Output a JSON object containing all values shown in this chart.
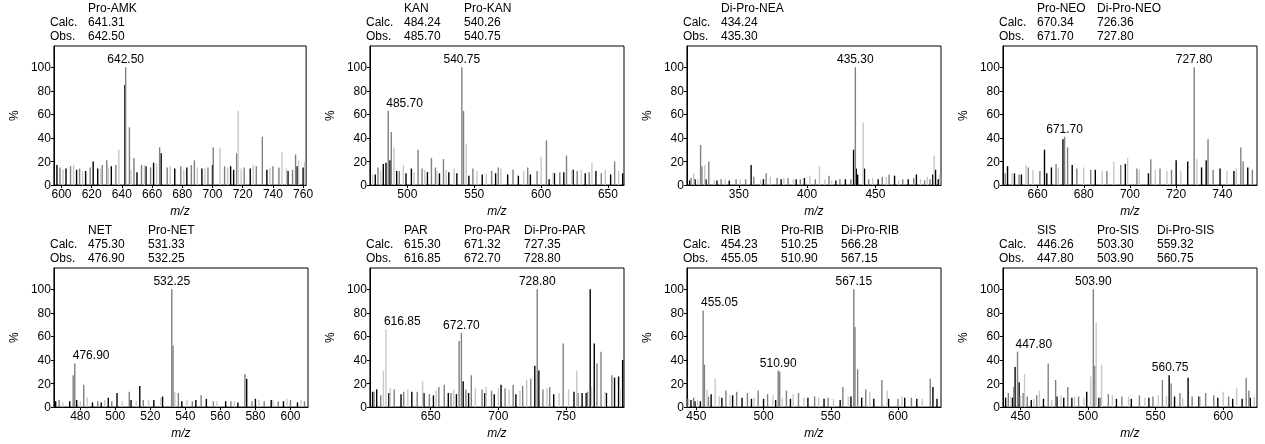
{
  "chart_data": [
    {
      "type": "bar",
      "xlabel": "m/z",
      "ylabel": "%",
      "xlim": [
        595,
        762
      ],
      "xticks": [
        600,
        620,
        640,
        660,
        680,
        700,
        720,
        740,
        760
      ],
      "ylim": [
        0,
        118
      ],
      "yticks": [
        0,
        20,
        40,
        60,
        80,
        100
      ],
      "annotations": [
        {
          "text": "642.50",
          "x": 642.5,
          "y": 100
        },
        "Pro-AMK",
        "Calc.",
        "641.31",
        "Obs.",
        "642.50"
      ],
      "series": [
        {
          "color": "#000000",
          "x": [
            597,
            603,
            610,
            616,
            621,
            624,
            633,
            642,
            650,
            656,
            661,
            666,
            675,
            683,
            693,
            700,
            712,
            714,
            725,
            736,
            750,
            756,
            760
          ],
          "values": [
            17,
            14,
            13,
            12,
            20,
            14,
            16,
            85,
            11,
            16,
            19,
            27,
            14,
            15,
            14,
            17,
            16,
            13,
            14,
            13,
            12,
            16,
            15
          ]
        },
        {
          "color": "#808080",
          "x": [
            599,
            606,
            612,
            619,
            627,
            630,
            636,
            642.5,
            645,
            648,
            653,
            659,
            665,
            670,
            679,
            686,
            688,
            697,
            700.5,
            708,
            716,
            721,
            729,
            733,
            740,
            744,
            753,
            755
          ],
          "values": [
            15,
            16,
            14,
            15,
            17,
            21,
            17,
            100,
            49,
            23,
            17,
            15,
            32,
            15,
            16,
            17,
            21,
            15,
            32,
            16,
            27,
            15,
            16,
            41,
            16,
            15,
            13,
            26
          ]
        },
        {
          "color": "#c8c8c8",
          "x": [
            601,
            608,
            614,
            626,
            631,
            638,
            646,
            655,
            663,
            672,
            681,
            690,
            695,
            705,
            710,
            717,
            719,
            727,
            738,
            746,
            749,
            757,
            761
          ],
          "values": [
            13,
            17,
            12,
            14,
            15,
            30,
            13,
            17,
            18,
            16,
            13,
            15,
            14,
            32,
            15,
            63,
            14,
            17,
            15,
            28,
            14,
            21,
            20
          ]
        }
      ]
    },
    {
      "type": "bar",
      "xlabel": "m/z",
      "ylabel": "%",
      "xlim": [
        472,
        662
      ],
      "xticks": [
        500,
        550,
        600,
        650
      ],
      "ylim": [
        0,
        118
      ],
      "yticks": [
        0,
        20,
        40,
        60,
        80,
        100
      ],
      "annotations": [
        {
          "text": "540.75",
          "x": 540.75,
          "y": 100
        },
        {
          "text": "485.70",
          "x": 485.7,
          "y": 63
        },
        "KAN",
        "Pro-KAN",
        "Calc.",
        "484.24",
        "540.26",
        "Obs.",
        "485.70",
        "540.75"
      ],
      "series": [
        {
          "color": "#000000",
          "x": [
            476,
            482,
            484,
            487,
            492,
            499,
            503,
            515,
            524,
            531,
            537,
            546,
            556,
            566,
            575,
            583,
            592,
            606,
            610,
            617,
            624,
            633,
            641,
            652,
            661
          ],
          "values": [
            9,
            18,
            19,
            21,
            12,
            10,
            14,
            11,
            10,
            11,
            10,
            8,
            9,
            10,
            9,
            8,
            9,
            5,
            10,
            11,
            13,
            10,
            12,
            9,
            10
          ]
        },
        {
          "color": "#808080",
          "x": [
            478,
            485.7,
            488,
            494,
            508,
            511,
            518,
            521,
            527,
            540.75,
            542,
            549,
            563,
            568,
            579,
            590,
            597,
            604,
            614,
            619,
            627,
            636,
            645,
            655
          ],
          "values": [
            15,
            63,
            45,
            12,
            30,
            14,
            23,
            15,
            22,
            100,
            63,
            14,
            12,
            15,
            13,
            15,
            12,
            38,
            11,
            25,
            12,
            11,
            10,
            20
          ]
        },
        {
          "color": "#c8c8c8",
          "x": [
            474,
            480,
            490,
            497,
            505,
            513,
            522,
            529,
            535,
            544,
            552,
            559,
            570,
            587,
            600,
            609,
            623,
            630,
            638,
            648,
            658
          ],
          "values": [
            9,
            12,
            32,
            17,
            11,
            13,
            12,
            13,
            14,
            35,
            12,
            10,
            14,
            12,
            24,
            11,
            12,
            13,
            19,
            13,
            12
          ]
        }
      ]
    },
    {
      "type": "bar",
      "xlabel": "m/z",
      "ylabel": "%",
      "xlim": [
        312,
        498
      ],
      "xticks": [
        350,
        400,
        450
      ],
      "ylim": [
        0,
        118
      ],
      "yticks": [
        0,
        20,
        40,
        60,
        80,
        100
      ],
      "annotations": [
        {
          "text": "435.30",
          "x": 435.3,
          "y": 100
        },
        "Di-Pro-NEA",
        "Calc.",
        "434.24",
        "Obs.",
        "435.30"
      ],
      "series": [
        {
          "color": "#000000",
          "x": [
            314,
            318,
            326,
            334,
            343,
            359,
            368,
            381,
            392,
            398,
            421,
            428,
            434,
            436,
            437,
            442,
            452,
            464,
            474,
            480,
            492,
            494,
            496
          ],
          "values": [
            4,
            5,
            5,
            4,
            4,
            17,
            5,
            5,
            5,
            6,
            4,
            5,
            30,
            14,
            9,
            14,
            5,
            8,
            5,
            9,
            9,
            13,
            5
          ]
        },
        {
          "color": "#808080",
          "x": [
            315,
            322,
            323,
            328,
            337,
            348,
            355,
            361,
            370,
            378,
            386,
            395,
            406,
            416,
            424,
            432,
            435.3,
            445,
            455,
            460,
            470,
            478,
            486,
            490
          ],
          "values": [
            6,
            34,
            16,
            20,
            5,
            5,
            5,
            7,
            10,
            6,
            6,
            5,
            5,
            8,
            5,
            5,
            100,
            5,
            7,
            9,
            5,
            6,
            4,
            5
          ]
        },
        {
          "color": "#c8c8c8",
          "x": [
            317,
            320,
            325,
            332,
            340,
            351,
            366,
            373,
            383,
            390,
            402,
            409,
            413,
            418,
            441,
            448,
            458,
            467,
            483,
            488,
            493,
            497
          ],
          "values": [
            10,
            5,
            17,
            4,
            5,
            5,
            4,
            7,
            6,
            5,
            8,
            16,
            5,
            4,
            53,
            6,
            7,
            4,
            5,
            7,
            25,
            9
          ]
        }
      ]
    },
    {
      "type": "bar",
      "xlabel": "m/z",
      "ylabel": "%",
      "xlim": [
        645,
        755
      ],
      "xticks": [
        660,
        680,
        700,
        720,
        740
      ],
      "ylim": [
        0,
        118
      ],
      "yticks": [
        0,
        20,
        40,
        60,
        80,
        100
      ],
      "annotations": [
        {
          "text": "727.80",
          "x": 727.8,
          "y": 100
        },
        {
          "text": "671.70",
          "x": 671.7,
          "y": 41
        },
        "Pro-NEO",
        "Di-Pro-NEO",
        "Calc.",
        "670.34",
        "726.36",
        "Obs.",
        "671.70",
        "727.80"
      ],
      "series": [
        {
          "color": "#000000",
          "x": [
            647,
            650,
            653,
            663,
            664,
            666,
            671,
            675,
            685,
            698,
            708,
            720,
            725,
            731,
            733,
            739,
            745,
            751
          ],
          "values": [
            16,
            10,
            9,
            30,
            10,
            15,
            39,
            17,
            13,
            18,
            10,
            21,
            20,
            15,
            21,
            14,
            12,
            15
          ]
        },
        {
          "color": "#808080",
          "x": [
            646,
            652,
            656,
            661,
            668,
            671.7,
            673,
            677,
            683,
            690,
            696,
            703,
            709,
            713,
            718,
            727.8,
            733.8,
            736,
            748,
            749,
            753
          ],
          "values": [
            10,
            9,
            15,
            12,
            18,
            41,
            32,
            14,
            13,
            12,
            17,
            14,
            22,
            14,
            13,
            100,
            39,
            13,
            32,
            20,
            13
          ]
        },
        {
          "color": "#c8c8c8",
          "x": [
            649,
            655,
            658,
            669,
            680,
            688,
            693,
            699,
            704,
            711,
            716,
            722,
            729,
            742,
            746
          ],
          "values": [
            10,
            17,
            13,
            15,
            15,
            12,
            20,
            23,
            13,
            13,
            12,
            12,
            22,
            12,
            14
          ]
        }
      ]
    },
    {
      "type": "bar",
      "xlabel": "m/z",
      "ylabel": "%",
      "xlim": [
        465,
        610
      ],
      "xticks": [
        480,
        500,
        520,
        540,
        560,
        580,
        600
      ],
      "ylim": [
        0,
        118
      ],
      "yticks": [
        0,
        20,
        40,
        60,
        80,
        100
      ],
      "annotations": [
        {
          "text": "532.25",
          "x": 532.25,
          "y": 100
        },
        {
          "text": "476.90",
          "x": 476.9,
          "y": 37
        },
        "NET",
        "Pro-NET",
        "Calc.",
        "475.30",
        "531.33",
        "Obs.",
        "476.90",
        "532.25"
      ],
      "series": [
        {
          "color": "#000000",
          "x": [
            466,
            474,
            478,
            487,
            492,
            496,
            501,
            509,
            514,
            522,
            527,
            538,
            546,
            552,
            563,
            570,
            575,
            580,
            589,
            596,
            604
          ],
          "values": [
            5,
            5,
            6,
            4,
            4,
            8,
            12,
            6,
            18,
            6,
            9,
            5,
            6,
            7,
            5,
            4,
            24,
            7,
            6,
            5,
            4
          ]
        },
        {
          "color": "#808080",
          "x": [
            468,
            476,
            476.9,
            482,
            490,
            498,
            508,
            516,
            532.25,
            533,
            536,
            544,
            549,
            556,
            566,
            574,
            578,
            585,
            593,
            600,
            608
          ],
          "values": [
            6,
            27,
            37,
            19,
            5,
            5,
            13,
            6,
            100,
            52,
            12,
            5,
            10,
            5,
            5,
            28,
            5,
            5,
            5,
            6,
            5
          ]
        },
        {
          "color": "#c8c8c8",
          "x": [
            470,
            480,
            484,
            494,
            504,
            512,
            519,
            526,
            534,
            541,
            558,
            568,
            582,
            590,
            598,
            606
          ],
          "values": [
            4,
            5,
            8,
            6,
            5,
            5,
            6,
            8,
            13,
            6,
            5,
            5,
            6,
            6,
            7,
            6
          ]
        }
      ]
    },
    {
      "type": "bar",
      "xlabel": "m/z",
      "ylabel": "%",
      "xlim": [
        605,
        793
      ],
      "xticks": [
        650,
        700,
        750
      ],
      "ylim": [
        0,
        118
      ],
      "yticks": [
        0,
        20,
        40,
        60,
        80,
        100
      ],
      "annotations": [
        {
          "text": "728.80",
          "x": 728.8,
          "y": 100
        },
        {
          "text": "616.85",
          "x": 616.85,
          "y": 66
        },
        {
          "text": "672.70",
          "x": 672.7,
          "y": 63
        },
        "PAR",
        "Pro-PAR",
        "Di-Pro-PAR",
        "Calc.",
        "615.30",
        "671.32",
        "727.35",
        "Obs.",
        "616.85",
        "672.70",
        "728.80"
      ],
      "series": [
        {
          "color": "#000000",
          "x": [
            607,
            610,
            619,
            628,
            636,
            645,
            652,
            663,
            669,
            674,
            678,
            690,
            697,
            702,
            713,
            727,
            730,
            741,
            756,
            762,
            765,
            768,
            771,
            780,
            786,
            789,
            792
          ],
          "values": [
            13,
            15,
            12,
            11,
            13,
            12,
            10,
            12,
            11,
            22,
            12,
            12,
            11,
            19,
            11,
            35,
            31,
            11,
            13,
            12,
            12,
            100,
            54,
            12,
            25,
            26,
            40
          ]
        },
        {
          "color": "#808080",
          "x": [
            608,
            613,
            623,
            630,
            640,
            649,
            656,
            660,
            665,
            671,
            672.7,
            676,
            680,
            688,
            695,
            705,
            711,
            718,
            724,
            728.8,
            733,
            738,
            748,
            759,
            766,
            773,
            776,
            784
          ],
          "values": [
            13,
            10,
            15,
            13,
            13,
            11,
            17,
            19,
            12,
            56,
            63,
            15,
            27,
            15,
            14,
            16,
            19,
            18,
            24,
            100,
            15,
            17,
            54,
            12,
            13,
            37,
            47,
            27
          ]
        },
        {
          "color": "#c8c8c8",
          "x": [
            615,
            616.85,
            620,
            633,
            644,
            654,
            667,
            683,
            691,
            700,
            708,
            716,
            721,
            736,
            745,
            752,
            758,
            769,
            779,
            790
          ],
          "values": [
            31,
            66,
            16,
            15,
            22,
            14,
            15,
            16,
            17,
            16,
            15,
            14,
            23,
            16,
            12,
            15,
            31,
            17,
            13,
            16
          ]
        }
      ]
    },
    {
      "type": "bar",
      "xlabel": "m/z",
      "ylabel": "%",
      "xlim": [
        443,
        632
      ],
      "xticks": [
        450,
        500,
        550,
        600
      ],
      "ylim": [
        0,
        118
      ],
      "yticks": [
        0,
        20,
        40,
        60,
        80,
        100
      ],
      "annotations": [
        {
          "text": "567.15",
          "x": 567.15,
          "y": 100
        },
        {
          "text": "455.05",
          "x": 455.05,
          "y": 82
        },
        {
          "text": "510.90",
          "x": 510.9,
          "y": 31
        },
        "RIB",
        "Pro-RIB",
        "Di-Pro-RIB",
        "Calc.",
        "454.23",
        "510.25",
        "566.28",
        "Obs.",
        "455.05",
        "510.90",
        "567.15"
      ],
      "series": [
        {
          "color": "#000000",
          "x": [
            446,
            449,
            453,
            461,
            469,
            477,
            484,
            491,
            500,
            509,
            520,
            533,
            545,
            557,
            565,
            573,
            582,
            593,
            605,
            614,
            626,
            629
          ],
          "values": [
            6,
            5,
            5,
            11,
            8,
            10,
            8,
            7,
            7,
            6,
            7,
            8,
            7,
            6,
            9,
            8,
            7,
            7,
            8,
            7,
            17,
            7
          ]
        },
        {
          "color": "#808080",
          "x": [
            448,
            455.05,
            456,
            459,
            472,
            480,
            488,
            496,
            503,
            510.9,
            512,
            517,
            526,
            538,
            548,
            559,
            567.15,
            568,
            570,
            576,
            588,
            600,
            610,
            624
          ],
          "values": [
            8,
            82,
            36,
            9,
            14,
            13,
            12,
            14,
            11,
            31,
            30,
            14,
            12,
            9,
            8,
            17,
            100,
            68,
            32,
            15,
            23,
            7,
            8,
            24
          ]
        },
        {
          "color": "#c8c8c8",
          "x": [
            444,
            451,
            458,
            464,
            467,
            475,
            493,
            507,
            514,
            522,
            530,
            541,
            552,
            563,
            579,
            592,
            603,
            618
          ],
          "values": [
            7,
            6,
            15,
            24,
            9,
            10,
            8,
            10,
            8,
            11,
            8,
            8,
            7,
            9,
            13,
            14,
            9,
            7
          ]
        }
      ]
    },
    {
      "type": "bar",
      "xlabel": "m/z",
      "ylabel": "%",
      "xlim": [
        437,
        625
      ],
      "xticks": [
        450,
        500,
        550,
        600
      ],
      "ylim": [
        0,
        118
      ],
      "yticks": [
        0,
        20,
        40,
        60,
        80,
        100
      ],
      "annotations": [
        {
          "text": "503.90",
          "x": 503.9,
          "y": 100
        },
        {
          "text": "447.80",
          "x": 447.8,
          "y": 47
        },
        {
          "text": "560.75",
          "x": 560.75,
          "y": 27
        },
        "SIS",
        "Pro-SIS",
        "Di-Pro-SIS",
        "Calc.",
        "446.26",
        "503.30",
        "559.32",
        "Obs.",
        "447.80",
        "503.90",
        "560.75"
      ],
      "series": [
        {
          "color": "#000000",
          "x": [
            439,
            444,
            446,
            449,
            458,
            467,
            477,
            482,
            488,
            499,
            508,
            521,
            532,
            545,
            560,
            564,
            574,
            582,
            596,
            607,
            614,
            620
          ],
          "values": [
            8,
            8,
            34,
            21,
            6,
            7,
            9,
            8,
            8,
            13,
            8,
            7,
            7,
            8,
            27,
            9,
            25,
            9,
            8,
            7,
            7,
            8
          ]
        },
        {
          "color": "#808080",
          "x": [
            441,
            445,
            447.8,
            452,
            455,
            462,
            470.5,
            476,
            485,
            493,
            503.9,
            505,
            509,
            515,
            525,
            538,
            548,
            555,
            561.5,
            568,
            577,
            587,
            593,
            604,
            617,
            619
          ],
          "values": [
            12,
            17,
            47,
            12,
            9,
            10,
            37,
            23,
            17,
            9,
            100,
            35,
            8,
            11,
            9,
            10,
            9,
            23,
            20,
            12,
            9,
            12,
            10,
            9,
            25,
            14
          ]
        },
        {
          "color": "#c8c8c8",
          "x": [
            443,
            450,
            453,
            460,
            464,
            473,
            480,
            490,
            497,
            502,
            506,
            510,
            518,
            530,
            542,
            552,
            558,
            570,
            583,
            600,
            610,
            623
          ],
          "values": [
            9,
            10,
            28,
            7,
            14,
            6,
            10,
            9,
            8,
            26,
            72,
            36,
            10,
            9,
            8,
            10,
            9,
            8,
            9,
            13,
            16,
            9
          ]
        }
      ]
    }
  ]
}
